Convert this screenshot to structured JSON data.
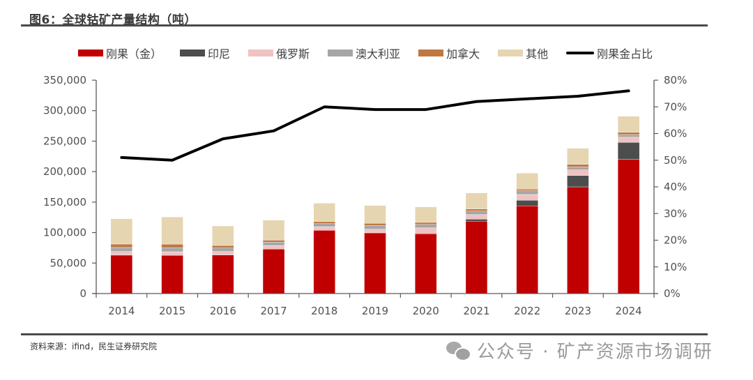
{
  "title": "图6：全球钴矿产量结构（吨）",
  "source": "资料来源：ifind，民生证券研究院",
  "watermark": "公众号 · 矿产资源市场调研",
  "colors": {
    "drc": "#c00000",
    "indonesia": "#4d4d4d",
    "russia": "#efc3c3",
    "australia": "#a6a6a6",
    "canada": "#c07843",
    "other": "#e6d5b1",
    "line": "#000000",
    "axis": "#595959"
  },
  "chart_data": {
    "type": "bar",
    "stacked": true,
    "title": "全球钴矿产量结构（吨）",
    "categories": [
      "2014",
      "2015",
      "2016",
      "2017",
      "2018",
      "2019",
      "2020",
      "2021",
      "2022",
      "2023",
      "2024"
    ],
    "series": [
      {
        "name": "刚果（金）",
        "key": "drc",
        "axis": "left",
        "values": [
          63000,
          62600,
          63300,
          72900,
          103700,
          99500,
          98000,
          118600,
          143800,
          175000,
          220000
        ]
      },
      {
        "name": "印尼",
        "key": "indonesia",
        "axis": "left",
        "values": [
          0,
          0,
          0,
          0,
          0,
          0,
          1000,
          3400,
          9200,
          18700,
          27900
        ]
      },
      {
        "name": "俄罗斯",
        "key": "russia",
        "axis": "left",
        "values": [
          6000,
          6000,
          5700,
          6000,
          6000,
          6100,
          8700,
          7600,
          9500,
          9200,
          8700
        ]
      },
      {
        "name": "澳大利亚",
        "key": "australia",
        "axis": "left",
        "values": [
          6500,
          6500,
          5700,
          5300,
          4900,
          6200,
          5700,
          5700,
          6100,
          5000,
          4200
        ]
      },
      {
        "name": "加拿大",
        "key": "canada",
        "axis": "left",
        "values": [
          5700,
          6000,
          4200,
          3400,
          3400,
          3400,
          3400,
          3400,
          2700,
          4100,
          3800
        ]
      },
      {
        "name": "其他",
        "key": "other",
        "axis": "left",
        "values": [
          41500,
          44600,
          32000,
          32800,
          30200,
          29300,
          25200,
          26300,
          26300,
          26300,
          26300
        ]
      },
      {
        "name": "刚果金占比",
        "key": "line",
        "type": "line",
        "axis": "right",
        "values": [
          0.51,
          0.5,
          0.58,
          0.61,
          0.7,
          0.69,
          0.69,
          0.72,
          0.73,
          0.74,
          0.76
        ]
      }
    ],
    "y_left": {
      "min": 0,
      "max": 350000,
      "ticks": [
        0,
        50000,
        100000,
        150000,
        200000,
        250000,
        300000,
        350000
      ],
      "tick_labels": [
        "0",
        "50,000",
        "100,000",
        "150,000",
        "200,000",
        "250,000",
        "300,000",
        "350,000"
      ]
    },
    "y_right": {
      "min": 0,
      "max": 0.8,
      "ticks": [
        0,
        0.1,
        0.2,
        0.3,
        0.4,
        0.5,
        0.6,
        0.7,
        0.8
      ],
      "tick_labels": [
        "0%",
        "10%",
        "20%",
        "30%",
        "40%",
        "50%",
        "60%",
        "70%",
        "80%"
      ]
    },
    "xlabel": "",
    "ylabel": "",
    "grid": false,
    "legend_position": "top"
  }
}
